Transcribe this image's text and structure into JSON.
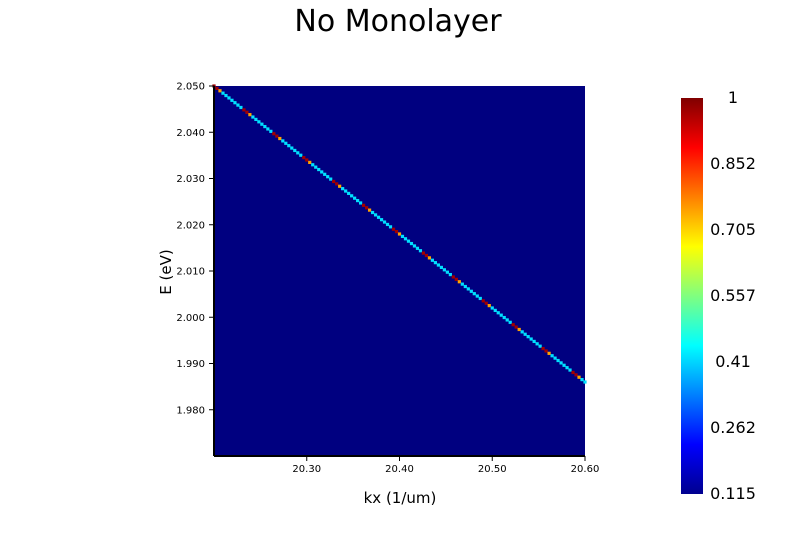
{
  "chart_data": {
    "type": "heatmap",
    "title": "No Monolayer",
    "xlabel": "kx (1/um)",
    "ylabel": "E (eV)",
    "xlim": [
      20.2,
      20.6
    ],
    "ylim": [
      1.97,
      2.05
    ],
    "x_ticks": [
      "20.30",
      "20.40",
      "20.50",
      "20.60"
    ],
    "x_tick_values": [
      20.3,
      20.4,
      20.5,
      20.6
    ],
    "y_ticks": [
      "2.050",
      "2.040",
      "2.030",
      "2.020",
      "2.010",
      "2.000",
      "1.990",
      "1.980"
    ],
    "y_tick_values": [
      2.05,
      2.04,
      2.03,
      2.02,
      2.01,
      2.0,
      1.99,
      1.98
    ],
    "colorbar": {
      "colormap": "jet",
      "min": 0.115,
      "max": 1,
      "tick_labels": [
        "1",
        "0.852",
        "0.705",
        "0.557",
        "0.41",
        "0.262",
        "0.115"
      ],
      "tick_values": [
        1,
        0.852,
        0.705,
        0.557,
        0.41,
        0.262,
        0.115
      ]
    },
    "background_value": 0.115,
    "dispersion_line": {
      "x_start": 20.2,
      "y_start": 2.05,
      "x_end": 20.6,
      "y_end": 1.986
    },
    "grid": false
  }
}
